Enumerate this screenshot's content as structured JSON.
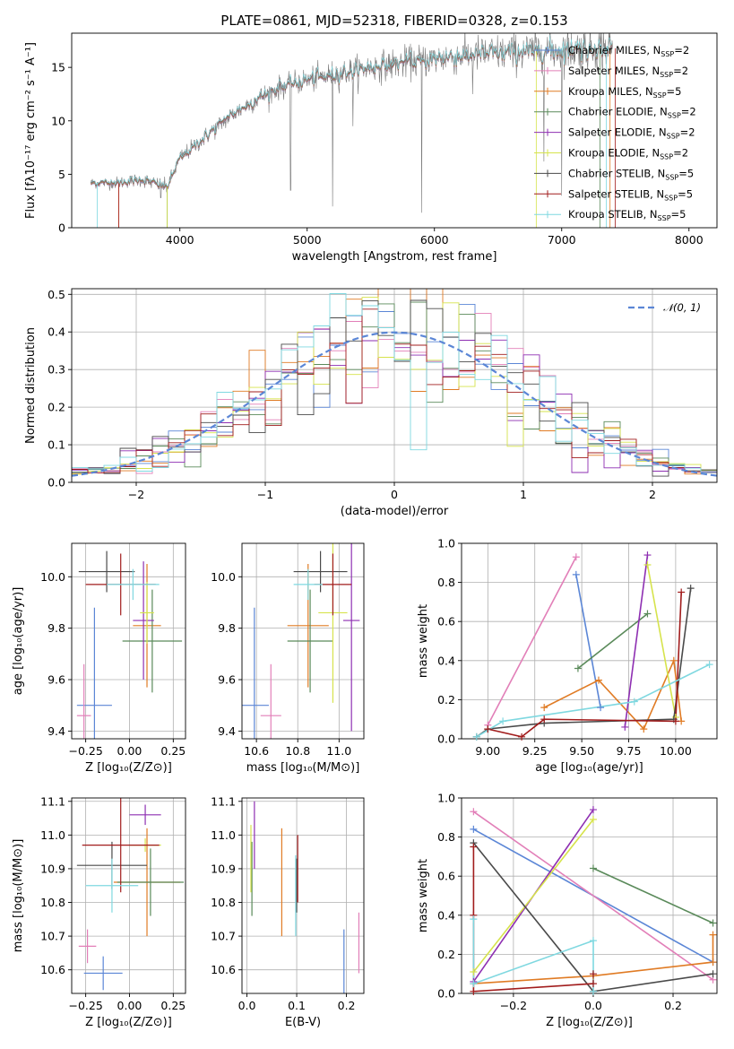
{
  "page_title": "PLATE=0861, MJD=52318, FIBERID=0328, z=0.153",
  "colors": {
    "Chabrier MILES": "#5b86d6",
    "Salpeter MILES": "#e27fb8",
    "Kroupa MILES": "#e07b24",
    "Chabrier ELODIE": "#5a8a5a",
    "Salpeter ELODIE": "#8e2fb2",
    "Kroupa ELODIE": "#d6e34c",
    "Chabrier STELIB": "#4a4a4a",
    "Salpeter STELIB": "#a11c1c",
    "Kroupa STELIB": "#7fd8e0"
  },
  "chart_data": [
    {
      "id": "spectrum",
      "type": "line",
      "title": "PLATE=0861, MJD=52318, FIBERID=0328, z=0.153",
      "xlabel": "wavelength [Angstrom, rest frame]",
      "ylabel": "Flux [fλ10⁻¹⁷ erg cm⁻² s⁻¹ A⁻¹]",
      "xlim": [
        3150,
        8220
      ],
      "ylim": [
        0,
        18.2
      ],
      "xticks": [
        4000,
        5000,
        6000,
        7000,
        8000
      ],
      "yticks": [
        0,
        5,
        10,
        15
      ],
      "legend_position": "top-right",
      "legend": [
        "Chabrier MILES, N_SSP=2",
        "Salpeter MILES, N_SSP=2",
        "Kroupa MILES, N_SSP=5",
        "Chabrier ELODIE, N_SSP=2",
        "Salpeter ELODIE, N_SSP=2",
        "Kroupa ELODIE, N_SSP=2",
        "Chabrier STELIB, N_SSP=5",
        "Salpeter STELIB, N_SSP=5",
        "Kroupa STELIB, N_SSP=5"
      ],
      "series_continuum": {
        "x": [
          3300,
          3500,
          3700,
          3900,
          4000,
          4200,
          4400,
          4600,
          4800,
          5000,
          5200,
          5500,
          5800,
          6000,
          6300,
          6600,
          6900,
          7100,
          7300,
          7400
        ],
        "y": [
          4.2,
          4.2,
          4.5,
          3.8,
          6.5,
          8.5,
          10.5,
          12.0,
          13.2,
          13.8,
          14.3,
          15.0,
          15.5,
          15.8,
          16.2,
          16.4,
          16.6,
          16.7,
          16.8,
          16.8
        ]
      }
    },
    {
      "id": "residuals",
      "type": "histogram",
      "xlabel": "(data-model)/error",
      "ylabel": "Normed distribution",
      "xlim": [
        -2.5,
        2.5
      ],
      "ylim": [
        0,
        0.515
      ],
      "xticks": [
        -2,
        -1,
        0,
        1,
        2
      ],
      "yticks": [
        0.0,
        0.1,
        0.2,
        0.3,
        0.4,
        0.5
      ],
      "legend_position": "top-right",
      "reference_curve": "𝒩(0, 1)"
    },
    {
      "id": "age-vs-Z",
      "type": "scatter",
      "xlabel": "Z [log₁₀(Z/Z⊙)]",
      "ylabel": "age  [log₁₀(age/yr)]",
      "xlim": [
        -0.33,
        0.32
      ],
      "ylim": [
        9.37,
        10.13
      ],
      "xticks": [
        -0.25,
        0.0,
        0.25
      ],
      "yticks": [
        9.4,
        9.6,
        9.8,
        10.0
      ],
      "points": [
        {
          "model": "Chabrier MILES",
          "x": -0.2,
          "y": 9.5,
          "xerr": 0.1,
          "yerr": 0.38
        },
        {
          "model": "Salpeter MILES",
          "x": -0.26,
          "y": 9.46,
          "xerr": 0.04,
          "yerr": 0.2
        },
        {
          "model": "Kroupa MILES",
          "x": 0.1,
          "y": 9.81,
          "xerr": 0.08,
          "yerr": 0.24
        },
        {
          "model": "Chabrier ELODIE",
          "x": 0.13,
          "y": 9.75,
          "xerr": 0.17,
          "yerr": 0.2
        },
        {
          "model": "Salpeter ELODIE",
          "x": 0.08,
          "y": 9.83,
          "xerr": 0.06,
          "yerr": 0.23
        },
        {
          "model": "Kroupa ELODIE",
          "x": 0.1,
          "y": 9.86,
          "xerr": 0.04,
          "yerr": 0.12
        },
        {
          "model": "Chabrier STELIB",
          "x": -0.13,
          "y": 10.02,
          "xerr": 0.16,
          "yerr": 0.08
        },
        {
          "model": "Salpeter STELIB",
          "x": -0.05,
          "y": 9.97,
          "xerr": 0.2,
          "yerr": 0.12
        },
        {
          "model": "Kroupa STELIB",
          "x": 0.02,
          "y": 9.97,
          "xerr": 0.15,
          "yerr": 0.06
        }
      ]
    },
    {
      "id": "age-vs-mass",
      "type": "scatter",
      "xlabel": "mass [log₁₀(M/M⊙)]",
      "ylabel": "",
      "xlim": [
        10.53,
        11.12
      ],
      "ylim": [
        9.37,
        10.13
      ],
      "xticks": [
        10.6,
        10.8,
        11.0
      ],
      "yticks": [
        9.4,
        9.6,
        9.8,
        10.0
      ],
      "points": [
        {
          "model": "Chabrier MILES",
          "x": 10.59,
          "y": 9.5,
          "xerr": 0.07,
          "yerr": 0.38
        },
        {
          "model": "Salpeter MILES",
          "x": 10.67,
          "y": 9.46,
          "xerr": 0.05,
          "yerr": 0.2
        },
        {
          "model": "Kroupa MILES",
          "x": 10.85,
          "y": 9.81,
          "xerr": 0.1,
          "yerr": 0.24
        },
        {
          "model": "Chabrier ELODIE",
          "x": 10.86,
          "y": 9.75,
          "xerr": 0.11,
          "yerr": 0.2
        },
        {
          "model": "Salpeter ELODIE",
          "x": 11.06,
          "y": 9.83,
          "xerr": 0.04,
          "yerr": 0.43
        },
        {
          "model": "Kroupa ELODIE",
          "x": 10.97,
          "y": 9.86,
          "xerr": 0.07,
          "yerr": 0.35
        },
        {
          "model": "Chabrier STELIB",
          "x": 10.91,
          "y": 10.02,
          "xerr": 0.13,
          "yerr": 0.08
        },
        {
          "model": "Salpeter STELIB",
          "x": 10.97,
          "y": 9.97,
          "xerr": 0.09,
          "yerr": 0.12
        },
        {
          "model": "Kroupa STELIB",
          "x": 10.85,
          "y": 9.97,
          "xerr": 0.07,
          "yerr": 0.06
        }
      ]
    },
    {
      "id": "weight-vs-age",
      "type": "line",
      "xlabel": "age  [log₁₀(age/yr)]",
      "ylabel": "mass weight",
      "xlim": [
        8.86,
        10.22
      ],
      "ylim": [
        0,
        1
      ],
      "xticks": [
        9.0,
        9.25,
        9.5,
        9.75,
        10.0
      ],
      "yticks": [
        0.0,
        0.2,
        0.4,
        0.6,
        0.8,
        1.0
      ],
      "series": [
        {
          "model": "Chabrier MILES",
          "x": [
            9.47,
            9.6
          ],
          "y": [
            0.84,
            0.16
          ]
        },
        {
          "model": "Salpeter MILES",
          "x": [
            9.0,
            9.47
          ],
          "y": [
            0.07,
            0.93
          ]
        },
        {
          "model": "Kroupa MILES",
          "x": [
            9.3,
            9.59,
            9.83,
            9.99,
            10.03
          ],
          "y": [
            0.16,
            0.3,
            0.05,
            0.4,
            0.09
          ]
        },
        {
          "model": "Chabrier ELODIE",
          "x": [
            9.48,
            9.85
          ],
          "y": [
            0.36,
            0.64
          ]
        },
        {
          "model": "Salpeter ELODIE",
          "x": [
            9.73,
            9.85
          ],
          "y": [
            0.06,
            0.94
          ]
        },
        {
          "model": "Kroupa ELODIE",
          "x": [
            9.85,
            10.0
          ],
          "y": [
            0.89,
            0.11
          ]
        },
        {
          "model": "Chabrier STELIB",
          "x": [
            8.94,
            9.0,
            9.3,
            9.99,
            10.08
          ],
          "y": [
            0.01,
            0.05,
            0.08,
            0.1,
            0.77
          ]
        },
        {
          "model": "Salpeter STELIB",
          "x": [
            9.0,
            9.18,
            9.3,
            10.0,
            10.03
          ],
          "y": [
            0.05,
            0.01,
            0.1,
            0.09,
            0.75
          ]
        },
        {
          "model": "Kroupa STELIB",
          "x": [
            8.94,
            9.08,
            9.78,
            10.18
          ],
          "y": [
            0.01,
            0.09,
            0.19,
            0.38
          ]
        }
      ]
    },
    {
      "id": "mass-vs-Z",
      "type": "scatter",
      "xlabel": "Z [log₁₀(Z/Z⊙)]",
      "ylabel": "mass [log₁₀(M/M⊙)]",
      "xlim": [
        -0.33,
        0.32
      ],
      "ylim": [
        10.53,
        11.11
      ],
      "xticks": [
        -0.25,
        0.0,
        0.25
      ],
      "yticks": [
        10.6,
        10.7,
        10.8,
        10.9,
        11.0,
        11.1
      ],
      "points": [
        {
          "model": "Chabrier MILES",
          "x": -0.15,
          "y": 10.59,
          "xerr": 0.11,
          "yerr": 0.05
        },
        {
          "model": "Salpeter MILES",
          "x": -0.24,
          "y": 10.67,
          "xerr": 0.05,
          "yerr": 0.05
        },
        {
          "model": "Kroupa MILES",
          "x": 0.1,
          "y": 10.86,
          "xerr": 0.19,
          "yerr": 0.16
        },
        {
          "model": "Chabrier ELODIE",
          "x": 0.12,
          "y": 10.86,
          "xerr": 0.19,
          "yerr": 0.1
        },
        {
          "model": "Salpeter ELODIE",
          "x": 0.09,
          "y": 11.06,
          "xerr": 0.09,
          "yerr": 0.03
        },
        {
          "model": "Kroupa ELODIE",
          "x": 0.09,
          "y": 10.97,
          "xerr": 0.09,
          "yerr": 0.02
        },
        {
          "model": "Chabrier STELIB",
          "x": -0.1,
          "y": 10.91,
          "xerr": 0.2,
          "yerr": 0.07
        },
        {
          "model": "Salpeter STELIB",
          "x": -0.05,
          "y": 10.97,
          "xerr": 0.22,
          "yerr": 0.14
        },
        {
          "model": "Kroupa STELIB",
          "x": -0.1,
          "y": 10.85,
          "xerr": 0.15,
          "yerr": 0.08
        }
      ]
    },
    {
      "id": "mass-vs-ebv",
      "type": "scatter",
      "xlabel": "E(B-V)",
      "ylabel": "",
      "xlim": [
        -0.01,
        0.235
      ],
      "ylim": [
        10.53,
        11.11
      ],
      "xticks": [
        0.0,
        0.1,
        0.2
      ],
      "yticks": [
        10.6,
        10.7,
        10.8,
        10.9,
        11.0,
        11.1
      ],
      "points": [
        {
          "model": "Chabrier MILES",
          "x": 0.195,
          "y": 10.6,
          "yerr": 0.12
        },
        {
          "model": "Salpeter MILES",
          "x": 0.225,
          "y": 10.68,
          "yerr": 0.09
        },
        {
          "model": "Kroupa MILES",
          "x": 0.07,
          "y": 10.86,
          "yerr": 0.16
        },
        {
          "model": "Chabrier ELODIE",
          "x": 0.01,
          "y": 10.87,
          "yerr": 0.11
        },
        {
          "model": "Salpeter ELODIE",
          "x": 0.015,
          "y": 11.0,
          "yerr": 0.1
        },
        {
          "model": "Kroupa ELODIE",
          "x": 0.008,
          "y": 10.93,
          "yerr": 0.1
        },
        {
          "model": "Chabrier STELIB",
          "x": 0.1,
          "y": 10.85,
          "yerr": 0.08
        },
        {
          "model": "Salpeter STELIB",
          "x": 0.102,
          "y": 10.9,
          "yerr": 0.1
        },
        {
          "model": "Kroupa STELIB",
          "x": 0.098,
          "y": 10.82,
          "yerr": 0.12
        }
      ]
    },
    {
      "id": "weight-vs-Z",
      "type": "line",
      "xlabel": "Z [log₁₀(Z/Z⊙)]",
      "ylabel": "mass weight",
      "xlim": [
        -0.33,
        0.31
      ],
      "ylim": [
        0,
        1
      ],
      "xticks": [
        -0.2,
        0.0,
        0.2
      ],
      "yticks": [
        0.0,
        0.2,
        0.4,
        0.6,
        0.8,
        1.0
      ],
      "series": [
        {
          "model": "Chabrier MILES",
          "x": [
            -0.3,
            0.3
          ],
          "y": [
            0.84,
            0.16
          ]
        },
        {
          "model": "Salpeter MILES",
          "x": [
            -0.3,
            0.3
          ],
          "y": [
            0.93,
            0.07
          ]
        },
        {
          "model": "Kroupa MILES",
          "x": [
            -0.3,
            0.0,
            0.3,
            0.3
          ],
          "y": [
            0.05,
            0.09,
            0.16,
            0.3
          ]
        },
        {
          "model": "Chabrier ELODIE",
          "x": [
            0.0,
            0.3
          ],
          "y": [
            0.64,
            0.36
          ]
        },
        {
          "model": "Salpeter ELODIE",
          "x": [
            -0.3,
            0.0
          ],
          "y": [
            0.06,
            0.94
          ]
        },
        {
          "model": "Kroupa ELODIE",
          "x": [
            -0.3,
            0.0
          ],
          "y": [
            0.11,
            0.89
          ]
        },
        {
          "model": "Chabrier STELIB",
          "x": [
            -0.3,
            0.0,
            0.3
          ],
          "y": [
            0.77,
            0.01,
            0.1
          ]
        },
        {
          "model": "Salpeter STELIB",
          "x": [
            -0.3,
            -0.3,
            -0.3,
            0.0,
            0.0
          ],
          "y": [
            0.75,
            0.4,
            0.01,
            0.05,
            0.1
          ]
        },
        {
          "model": "Kroupa STELIB",
          "x": [
            -0.3,
            -0.3,
            0.0,
            0.0
          ],
          "y": [
            0.38,
            0.05,
            0.27,
            0.01
          ]
        }
      ]
    }
  ]
}
